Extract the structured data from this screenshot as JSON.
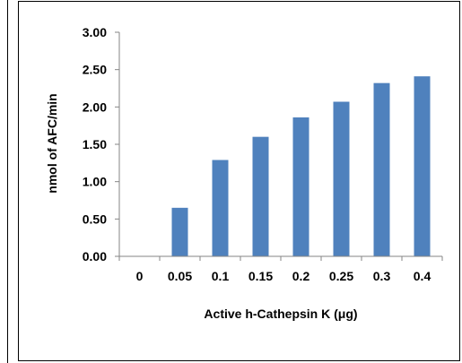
{
  "chart_data": {
    "type": "bar",
    "categories": [
      "0",
      "0.05",
      "0.1",
      "0.15",
      "0.2",
      "0.25",
      "0.3",
      "0.4"
    ],
    "series": [
      {
        "values": [
          0,
          0.65,
          1.29,
          1.6,
          1.86,
          2.07,
          2.32,
          2.41
        ]
      }
    ],
    "title": "",
    "xlabel": "Active h-Cathepsin K (μg)",
    "ylabel": "nmol of AFC/min",
    "ylim": [
      0,
      3
    ],
    "yticks": [
      "0.00",
      "0.50",
      "1.00",
      "1.50",
      "2.00",
      "2.50",
      "3.00"
    ],
    "grid": false,
    "legend": "none",
    "bar_color": "#4F81BD"
  }
}
